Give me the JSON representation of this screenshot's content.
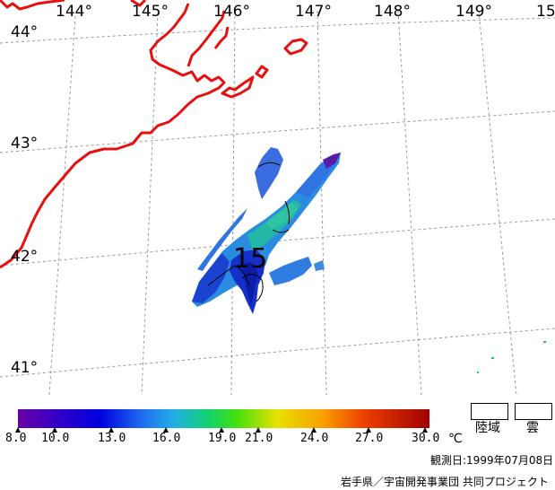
{
  "map": {
    "longitude_labels": [
      "144°",
      "145°",
      "146°",
      "147°",
      "148°",
      "149°",
      "15"
    ],
    "latitude_labels": [
      "44°",
      "43°",
      "42°",
      "41°"
    ],
    "contour_label": "15",
    "colors": {
      "coast": "#e61010",
      "grid": "#9a9a9a"
    }
  },
  "legend": {
    "scale_ticks": [
      "8.0",
      "10.0",
      "13.0",
      "16.0",
      "19.0",
      "21.0",
      "24.0",
      "27.0",
      "30.0"
    ],
    "unit": "℃",
    "land_label": "陸域",
    "cloud_label": "雲"
  },
  "footer": {
    "observation_date": "観測日:1999年07月08日",
    "credit": "岩手県／宇宙開発事業団 共同プロジェクト"
  }
}
